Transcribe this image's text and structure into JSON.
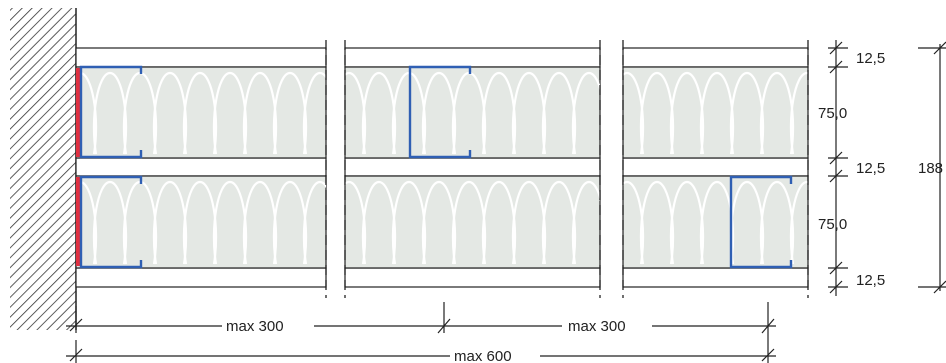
{
  "dimensions": {
    "board_top": "12,5",
    "stud_top": "75,0",
    "board_middle": "12,5",
    "stud_bottom": "75,0",
    "board_bottom": "12,5",
    "total_thickness": "188"
  },
  "spans": {
    "left_span": "max 300",
    "right_span": "max 300",
    "total_span": "max 600"
  },
  "colors": {
    "stud_profile": "#2f5fb3",
    "wall_seal": "#e03040",
    "insulation_fill": "#e4e8e4",
    "wall_hatch": "#333333"
  }
}
